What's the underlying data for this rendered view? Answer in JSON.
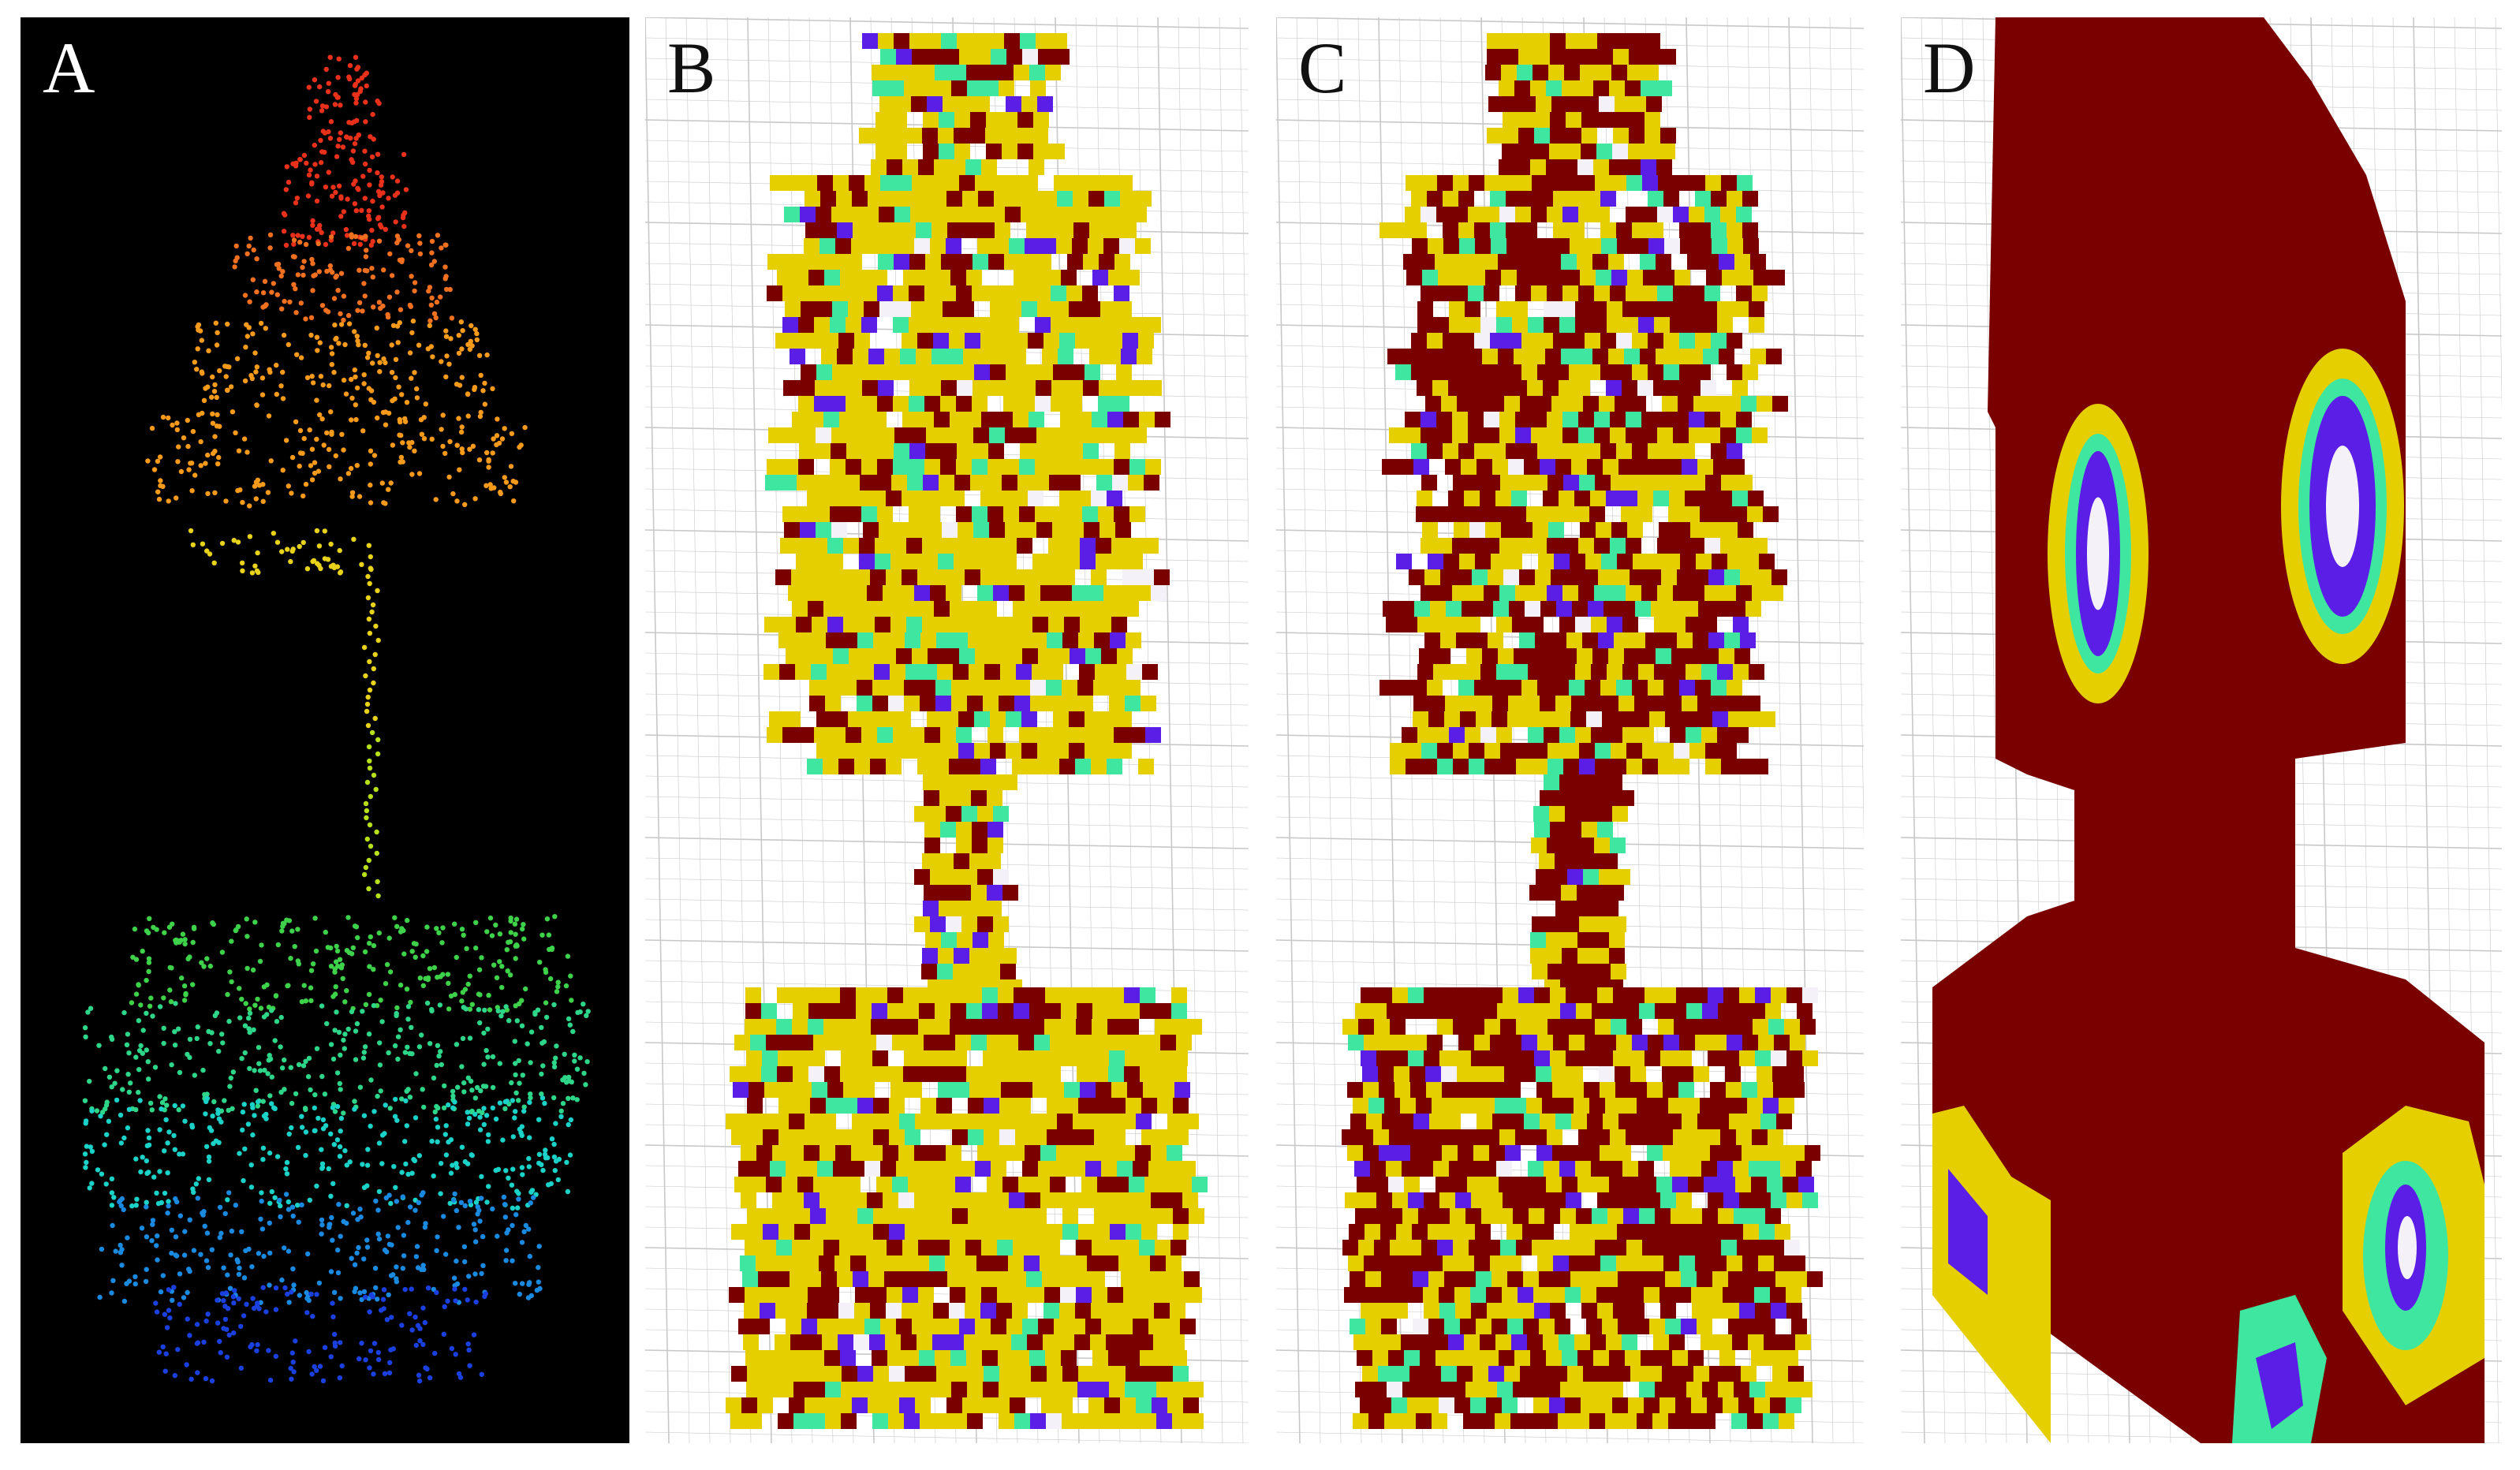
{
  "figure": {
    "panels": [
      {
        "id": "A",
        "label": "A",
        "kind": "point-cloud"
      },
      {
        "id": "B",
        "label": "B",
        "kind": "voxel-grid"
      },
      {
        "id": "C",
        "label": "C",
        "kind": "voxel-grid"
      },
      {
        "id": "D",
        "label": "D",
        "kind": "voxel-grid"
      }
    ]
  },
  "colors": {
    "background_dark": "#000000",
    "grid_line": "#c8c8c8",
    "voxel_yellow": "#e6cf00",
    "voxel_darkred": "#7a0000",
    "voxel_mint": "#3ee6a0",
    "voxel_purple": "#5a1ee6",
    "voxel_white": "#f4f2f8",
    "points_red": "#e8301a",
    "points_orange": "#f59a1a",
    "points_yellow": "#e8d21a",
    "points_green": "#3ed24a",
    "points_cyan": "#1ad2c8",
    "points_blue": "#1a40e0"
  }
}
